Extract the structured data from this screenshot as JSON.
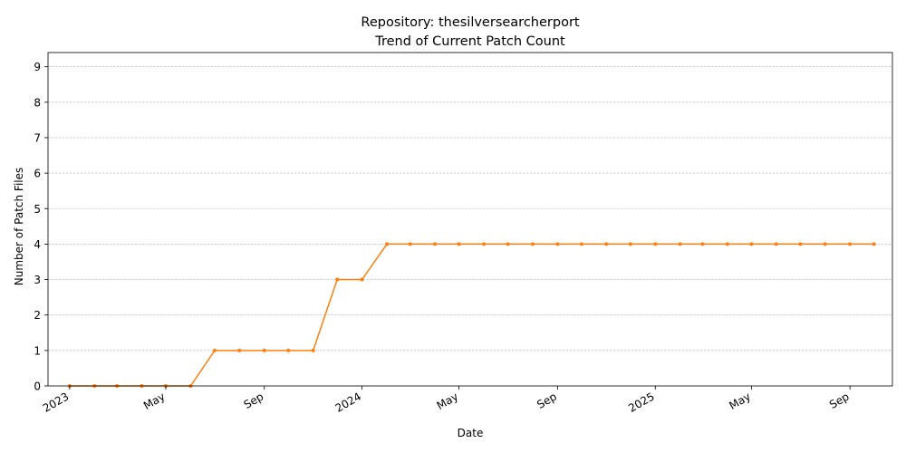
{
  "chart_data": {
    "type": "line",
    "title": "Repository: thesilversearcherport",
    "subtitle": "Trend of Current Patch Count",
    "xlabel": "Date",
    "ylabel": "Number of Patch Files",
    "ylim": [
      0,
      9.4
    ],
    "xlim": [
      "2022-12-05",
      "2025-10-24"
    ],
    "grid": "y",
    "series_color": "#ff7f0e",
    "yticks": [
      0,
      1,
      2,
      3,
      4,
      5,
      6,
      7,
      8,
      9
    ],
    "xticks": [
      {
        "date": "2023-01-01",
        "label": "2023"
      },
      {
        "date": "2023-05-01",
        "label": "May"
      },
      {
        "date": "2023-09-01",
        "label": "Sep"
      },
      {
        "date": "2024-01-01",
        "label": "2024"
      },
      {
        "date": "2024-05-01",
        "label": "May"
      },
      {
        "date": "2024-09-01",
        "label": "Sep"
      },
      {
        "date": "2025-01-01",
        "label": "2025"
      },
      {
        "date": "2025-05-01",
        "label": "May"
      },
      {
        "date": "2025-09-01",
        "label": "Sep"
      }
    ],
    "series": [
      {
        "x": [
          "2023-01-01",
          "2023-02-01",
          "2023-03-01",
          "2023-04-01",
          "2023-05-01",
          "2023-06-01",
          "2023-07-01",
          "2023-08-01",
          "2023-09-01",
          "2023-10-01",
          "2023-11-01",
          "2023-12-01",
          "2024-01-01",
          "2024-02-01",
          "2024-03-01",
          "2024-04-01",
          "2024-05-01",
          "2024-06-01",
          "2024-07-01",
          "2024-08-01",
          "2024-09-01",
          "2024-10-01",
          "2024-11-01",
          "2024-12-01",
          "2025-01-01",
          "2025-02-01",
          "2025-03-01",
          "2025-04-01",
          "2025-05-01",
          "2025-06-01",
          "2025-07-01",
          "2025-08-01",
          "2025-09-01",
          "2025-10-01"
        ],
        "values": [
          0,
          0,
          0,
          0,
          0,
          0,
          1,
          1,
          1,
          1,
          1,
          3,
          3,
          4,
          4,
          4,
          4,
          4,
          4,
          4,
          4,
          4,
          4,
          4,
          4,
          4,
          4,
          4,
          4,
          4,
          4,
          4,
          4,
          4
        ]
      }
    ]
  }
}
